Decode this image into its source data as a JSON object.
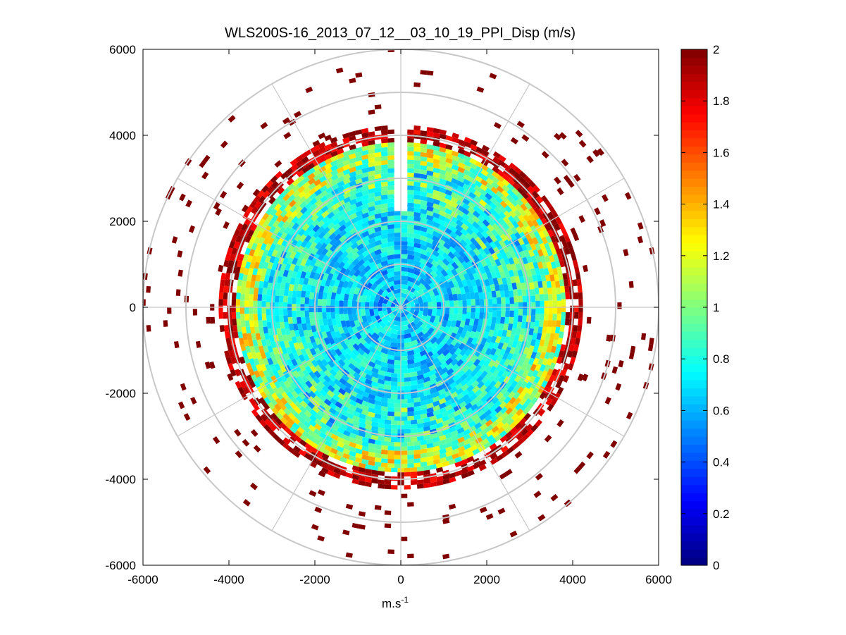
{
  "chart_data": {
    "type": "heatmap",
    "subtype": "polar-ppi-scan",
    "title": "WLS200S-16_2013_07_12__03_10_19_PPI_Disp (m/s)",
    "xlabel": "m.s",
    "xlabel_superscript": "-1",
    "ylabel": "",
    "xlim": [
      -6000,
      6000
    ],
    "ylim": [
      -6000,
      6000
    ],
    "x_ticks": [
      "-6000",
      "-4000",
      "-2000",
      "0",
      "2000",
      "4000",
      "6000"
    ],
    "y_ticks": [
      "6000",
      "4000",
      "2000",
      "0",
      "-2000",
      "-4000",
      "-6000"
    ],
    "polar_grid": {
      "ring_radii": [
        1000,
        2000,
        3000,
        4000,
        5000,
        6000
      ],
      "spoke_angles_deg": [
        0,
        30,
        60,
        90,
        120,
        150,
        180,
        210,
        240,
        270,
        300,
        330
      ]
    },
    "data_extent": {
      "dense_radius": 4000,
      "max_radius": 6000,
      "gap_azimuth_deg": [
        -2,
        2
      ],
      "value_trend": "low (~0.6-0.8) near center, rising to ~1.0-1.2 mid-range, saturating at 2 at outer edge"
    },
    "colorbar": {
      "colormap": "jet",
      "min": 0,
      "max": 2,
      "tick_values": [
        0,
        0.2,
        0.4,
        0.6,
        0.8,
        1,
        1.2,
        1.4,
        1.6,
        1.8,
        2
      ],
      "tick_labels": [
        "0",
        "0.2",
        "0.4",
        "0.6",
        "0.8",
        "1",
        "1.2",
        "1.4",
        "1.6",
        "1.8",
        "2"
      ]
    }
  }
}
